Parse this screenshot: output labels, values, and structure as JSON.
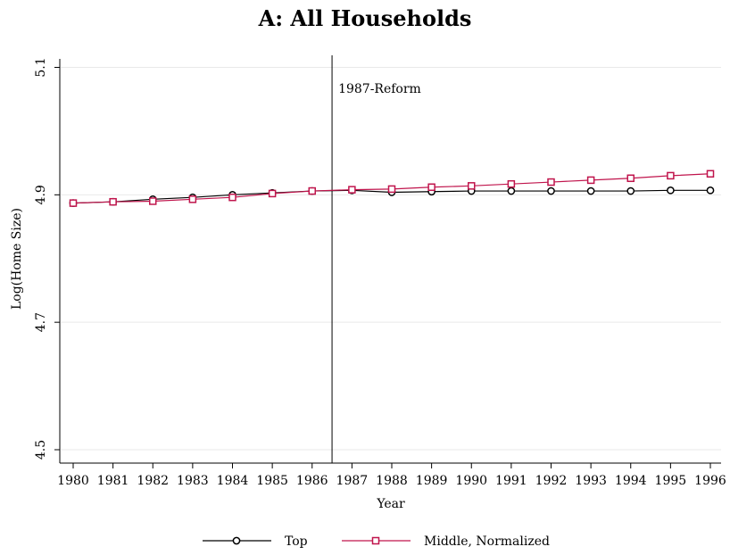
{
  "chart_data": {
    "type": "line",
    "title": "A: All Households",
    "xlabel": "Year",
    "ylabel": "Log(Home Size)",
    "x": [
      1980,
      1981,
      1982,
      1983,
      1984,
      1985,
      1986,
      1987,
      1988,
      1989,
      1990,
      1991,
      1992,
      1993,
      1994,
      1995,
      1996
    ],
    "x_ticks": [
      "1980",
      "1981",
      "1982",
      "1983",
      "1984",
      "1985",
      "1986",
      "1987",
      "1988",
      "1989",
      "1990",
      "1991",
      "1992",
      "1993",
      "1994",
      "1995",
      "1996"
    ],
    "y_ticks": [
      "4.5",
      "4.7",
      "4.9",
      "5.1"
    ],
    "ylim": [
      4.5,
      5.1
    ],
    "series": [
      {
        "name": "Top",
        "color": "#000000",
        "marker": "circle",
        "values": [
          4.887,
          4.889,
          4.893,
          4.896,
          4.9,
          4.903,
          4.906,
          4.907,
          4.904,
          4.905,
          4.906,
          4.906,
          4.906,
          4.906,
          4.906,
          4.907,
          4.907
        ]
      },
      {
        "name": "Middle, Normalized",
        "color": "#c0144c",
        "marker": "square",
        "values": [
          4.887,
          4.889,
          4.89,
          4.893,
          4.896,
          4.902,
          4.906,
          4.908,
          4.909,
          4.912,
          4.914,
          4.917,
          4.92,
          4.923,
          4.926,
          4.93,
          4.933
        ]
      }
    ],
    "vline": {
      "x": 1986.5,
      "label": "1987-Reform"
    },
    "grid": true,
    "legend_position": "bottom"
  }
}
